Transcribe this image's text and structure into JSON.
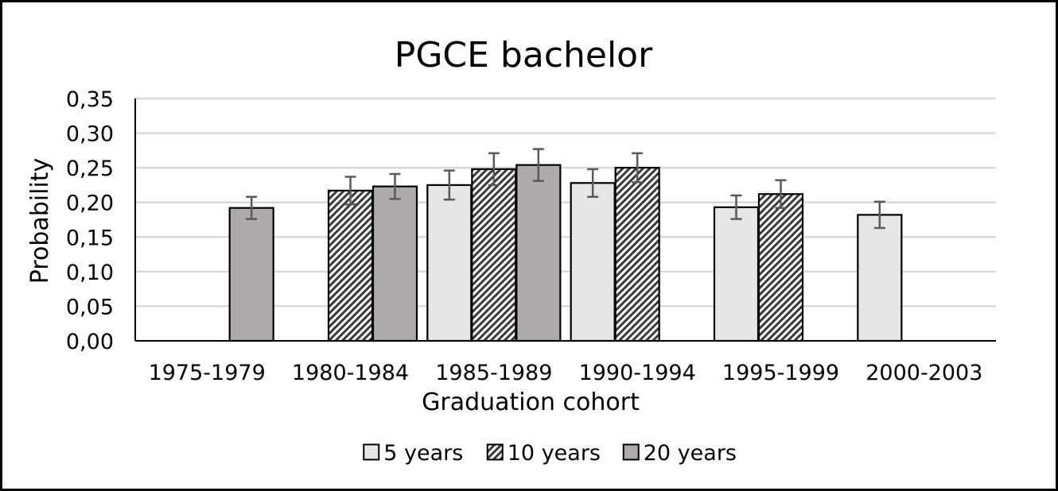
{
  "chart_data": {
    "type": "bar",
    "title": "PGCE bachelor",
    "xlabel": "Graduation cohort",
    "ylabel": "Probability",
    "categories": [
      "1975-1979",
      "1980-1984",
      "1985-1989",
      "1990-1994",
      "1995-1999",
      "2000-2003"
    ],
    "ylim": [
      0,
      0.35
    ],
    "yticks": [
      "0,00",
      "0,05",
      "0,10",
      "0,15",
      "0,20",
      "0,25",
      "0,30",
      "0,35"
    ],
    "grid": true,
    "legend_position": "bottom",
    "series": [
      {
        "name": "5 years",
        "pattern": "solid-light",
        "color": "#e7e6e6",
        "values": [
          0,
          0,
          0.225,
          0.228,
          0.193,
          0.182
        ],
        "error": [
          null,
          null,
          0.021,
          0.02,
          0.017,
          0.019
        ]
      },
      {
        "name": "10 years",
        "pattern": "diagonal-hatch",
        "color": "#595959",
        "values": [
          0,
          0.217,
          0.248,
          0.25,
          0.212,
          0
        ],
        "error": [
          null,
          0.02,
          0.023,
          0.021,
          0.02,
          null
        ]
      },
      {
        "name": "20 years",
        "pattern": "solid-gray",
        "color": "#aeaaaa",
        "values": [
          0.192,
          0.223,
          0.254,
          0,
          0,
          0
        ],
        "error": [
          0.016,
          0.018,
          0.023,
          null,
          null,
          null
        ]
      }
    ]
  }
}
